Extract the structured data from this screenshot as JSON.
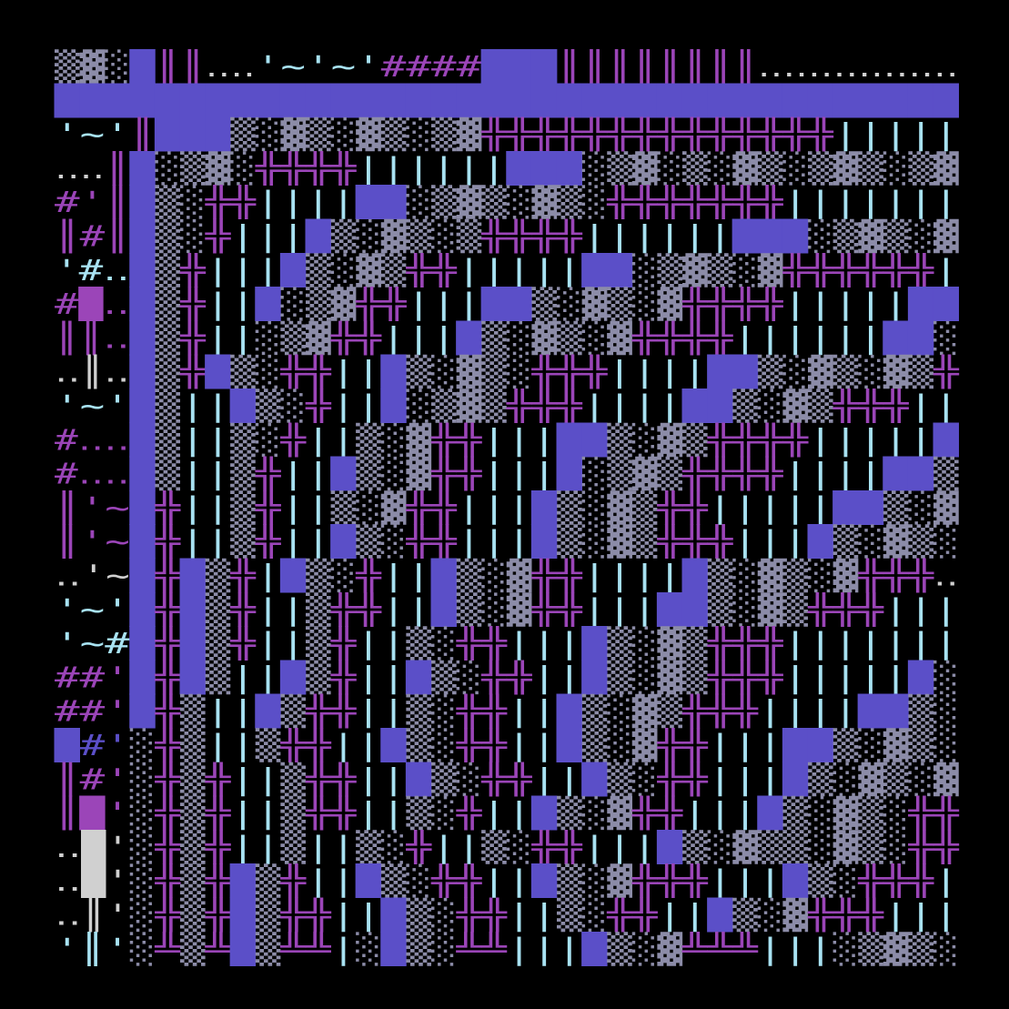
{
  "rows": [
    [
      "▒▓░",
      "█",
      "║║",
      "‥‥",
      "'~'~'",
      "####",
      "███",
      "║║║║║║║║",
      "‥‥‥‥‥‥‥‥"
    ],
    [
      "████████████████████████████████████"
    ],
    [
      "'~'",
      "║",
      "███",
      "▒░▓▒░▓▒░▒▓",
      "╬╬╬╬╬╬╬╬╬╬╬╬╬╬",
      "|||||"
    ],
    [
      "‥‥",
      "║",
      "█",
      "░▒▓░",
      "╬╬╬╬",
      "||||||",
      "███",
      "░▒▓░▒░▓▒░▒▓▒░▒▓"
    ],
    [
      "#'",
      "║",
      "█",
      "▒░",
      "╬╬",
      "||||",
      "██",
      "░▒▓▒░▓▒░",
      "╬╬╬╬╬╬╬",
      "|||||||"
    ],
    [
      "║#",
      "║",
      "█",
      "▒░",
      "╬",
      "|||",
      "█",
      "▒░▓▒░▒",
      "╬╬╬╬",
      "||||||",
      "███",
      "░▒▓▒░▓"
    ],
    [
      "'#‥",
      "█",
      "▒",
      "╬",
      "|||",
      "█",
      "▒░▓▒",
      "╬╬",
      "|||||",
      "██",
      "░▒▓▒░▓",
      "╬╬╬╬╬╬",
      "|"
    ],
    [
      "#█‥",
      "█",
      "▒",
      "╬",
      "||",
      "█",
      "░▒▓",
      "╬╬",
      "|||",
      "██",
      "▒░▓▒░▓",
      "╬╬╬╬",
      "|||||",
      "██"
    ],
    [
      "║║‥",
      "█",
      "▒",
      "╬",
      "||",
      "░▒▓",
      "╬╬",
      "|||",
      "█",
      "▒░▓▒░▓",
      "╬╬╬╬",
      "||||||",
      "██",
      "░"
    ],
    [
      "‥║‥",
      "█",
      "▒",
      "╬",
      "█",
      "▒░",
      "╬╬",
      "||",
      "█",
      "▒░▓▒░",
      "╬╬╬",
      "||||",
      "██",
      "▒░▓▒░▓▒",
      "╬"
    ],
    [
      "'~'",
      "█",
      "▒",
      "||",
      "█",
      "▒░",
      "╬",
      "||",
      "█",
      "░▒▓▒",
      "╬╬╬",
      "||||",
      "██",
      "▒░▓▒",
      "╬╬╬",
      "||"
    ],
    [
      "#‥‥",
      "█",
      "▒",
      "||",
      "▒░",
      "╬",
      "||",
      "▒░▓",
      "╬╬",
      "|||",
      "██",
      "▒░▓▒",
      "╬╬╬╬",
      "|||||",
      "█"
    ],
    [
      "#‥‥",
      "█",
      "▒",
      "||",
      "▒",
      "╬",
      "||",
      "█",
      "▒░▓",
      "╬╬",
      "|||",
      "█",
      "░▒▓▒",
      "╬╬╬╬",
      "||||",
      "██",
      "▒"
    ],
    [
      "║'~",
      "█",
      "╬",
      "||",
      "▒",
      "╬",
      "||",
      "▒░▓",
      "╬╬",
      "|||",
      "█",
      "▒░▓▒",
      "╬╬",
      "|||||",
      "██",
      "▒░▓"
    ],
    [
      "║'~",
      "█",
      "╬",
      "||",
      "▒",
      "╬",
      "||",
      "█",
      "▒░",
      "╬╬",
      "|||",
      "█",
      "▒░▓▒",
      "╬╬╬",
      "|||",
      "█",
      "▒░▓▒░"
    ],
    [
      "‥'~",
      "█",
      "╬",
      "█",
      "▒",
      "╬",
      "|",
      "█",
      "▒░",
      "╬",
      "||",
      "█",
      "▒░▓",
      "╬╬",
      "||||",
      "█",
      "▒░▓▒░▓",
      "╬╬╬",
      "‥"
    ],
    [
      "'~'",
      "█",
      "╬",
      "█",
      "▒",
      "╬",
      "||",
      "▒",
      "╬╬",
      "||",
      "█",
      "▒░▓",
      "╬╬",
      "|||",
      "██",
      "▒░▓▒",
      "╬╬╬",
      "|||"
    ],
    [
      "'~#",
      "█",
      "╬",
      "█",
      "▒",
      "╬",
      "||",
      "▒",
      "╬",
      "||",
      "▒░",
      "╬╬",
      "|||",
      "█",
      "▒░▓▒",
      "╬╬╬",
      "|||||||"
    ],
    [
      "##'",
      "█",
      "╬",
      "█",
      "▒",
      "||",
      "█",
      "▒",
      "╬",
      "||",
      "█",
      "▒░",
      "╬╬",
      "||",
      "█",
      "▒░▓▒",
      "╬╬╬",
      "|||||",
      "█",
      "░"
    ],
    [
      "##'",
      "█",
      "╬",
      "▒",
      "||",
      "█",
      "▒",
      "╬╬",
      "||",
      "▒░",
      "╬╬",
      "||",
      "█",
      "▒░▓▒",
      "╬╬╬",
      "||||",
      "██",
      "▒░"
    ],
    [
      "█#'",
      "░",
      "╬",
      "▒",
      "||",
      "▒",
      "╬╬",
      "||",
      "█",
      "▒░",
      "╬╬",
      "||",
      "█",
      "▒░▓",
      "╬╬",
      "|||",
      "██",
      "▒░▓▒░"
    ],
    [
      "║#'",
      "░",
      "╬",
      "▒",
      "╬",
      "||",
      "▒",
      "╬╬",
      "||",
      "█",
      "▒░",
      "╬╬",
      "||",
      "█",
      "▒░",
      "╬╬",
      "|||",
      "█",
      "▒░▓▒░▓"
    ],
    [
      "║█'",
      "░",
      "╬",
      "▒",
      "╬",
      "||",
      "▒",
      "╬╬",
      "||",
      "▒░",
      "╬",
      "||",
      "█",
      "▒░▓",
      "╬╬",
      "|||",
      "█",
      "▒░▓▒░",
      "╬╬"
    ],
    [
      "‥█'",
      "░",
      "╬",
      "▒",
      "╬",
      "||",
      "▒",
      "||",
      "▒░",
      "╬",
      "||",
      "▒░",
      "╬╬",
      "|||",
      "█",
      "▒░▓▒▒░▓▒░",
      "╬╬"
    ],
    [
      "‥█'",
      "░",
      "╬",
      "▒",
      "╬",
      "█",
      "▒",
      "╬",
      "||",
      "█",
      "▒░",
      "╬╬",
      "||",
      "█",
      "▒░▓",
      "╬╬╬",
      "|||",
      "█",
      "▒░",
      "╬╬╬",
      "|"
    ],
    [
      "‥║'",
      "░",
      "╬",
      "▒",
      "╬",
      "█",
      "▒",
      "╬╬",
      "||",
      "█",
      "▒░",
      "╬╬",
      "||",
      "▒░",
      "╬╬",
      "||",
      "█",
      "▒░▓",
      "╬╬╬",
      "|||"
    ],
    [
      "'║'",
      "░",
      "╩",
      "▒",
      "╩",
      "█",
      "▒",
      "╩╩",
      "|",
      "░",
      "█",
      "▒░",
      "╩╩",
      "|||",
      "█",
      "▒░▓",
      "╩╩╩",
      "|||",
      "░▒▓▒░"
    ]
  ]
}
